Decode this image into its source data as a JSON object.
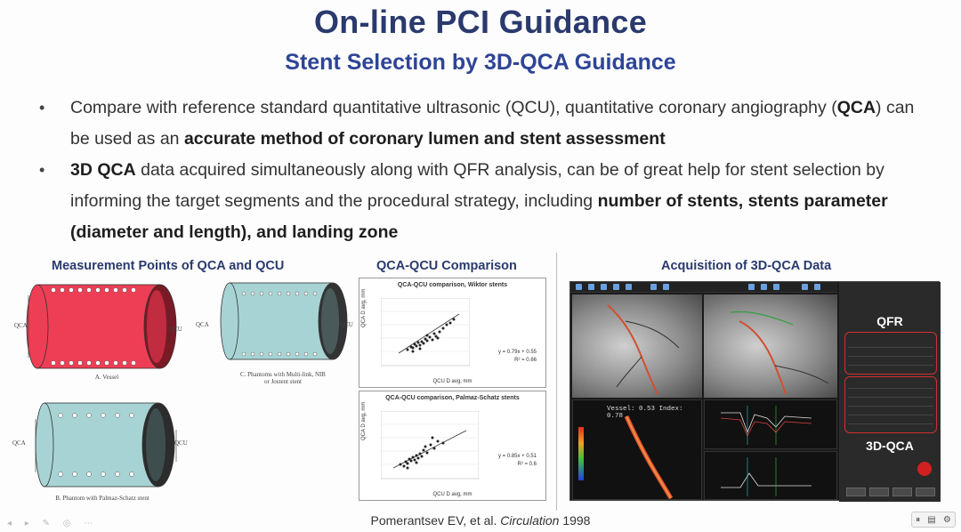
{
  "slide": {
    "title": "On-line PCI Guidance",
    "subtitle": "Stent Selection by 3D-QCA Guidance",
    "bullet1": {
      "t1": "Compare with reference standard quantitative ultrasonic (QCU), quantitative coronary angiography (",
      "b1": "QCA",
      "t2": ") can be used as an ",
      "b2": "accurate method of coronary lumen and stent assessment"
    },
    "bullet2": {
      "b1": "3D QCA",
      "t1": " data acquired simultaneously along with QFR analysis, can be of great help for stent selection by informing the target segments and the procedural strategy, including ",
      "b2": "number of stents, stents parameter (diameter and length), and landing zone"
    },
    "panel_left_title": "Measurement Points of QCA and QCU",
    "panel_mid_title": "QCA-QCU Comparison",
    "panel_right_title": "Acquisition of 3D-QCA Data",
    "citation_author": "Pomerantsev EV, et al. ",
    "citation_journal": "Circulation",
    "citation_year": " 1998"
  },
  "cylinders": {
    "qca": "QCA",
    "qcu": "QCU",
    "cap_a": "A. Vessel",
    "cap_b": "B. Phantom with Palmaz-Schatz stent",
    "cap_c": "C. Phantoms with Multi-link, NIR or Jostent stent"
  },
  "plots": {
    "top": {
      "title": "QCA-QCU comparison, Wiktor stents",
      "eq": "y = 0.79x + 0.55",
      "r2": "R² = 0.66",
      "xlabel": "QCU D avg, mm",
      "ylabel": "QCA D avg, mm"
    },
    "bottom": {
      "title": "QCA-QCU comparison, Palmaz-Schatz stents",
      "eq": "y = 0.85x + 0.51",
      "r2": "R² = 0.6",
      "xlabel": "QCU D avg, mm",
      "ylabel": "QCA D avg, mm"
    }
  },
  "app": {
    "qfr_label": "QFR",
    "qca_label": "3D-QCA",
    "vessel_readout": "Vessel: 0.53   Index: 0.78"
  },
  "controls": {
    "page_icon": "page-icon",
    "settings_icon": "gear-icon"
  }
}
